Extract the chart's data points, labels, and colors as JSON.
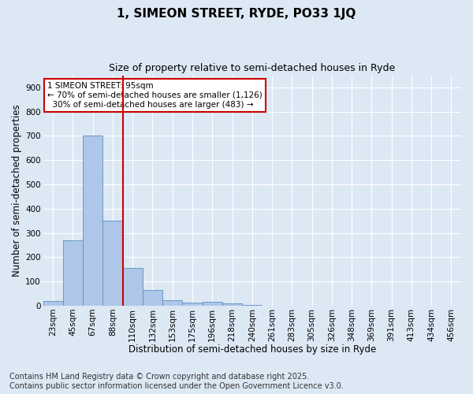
{
  "title": "1, SIMEON STREET, RYDE, PO33 1JQ",
  "subtitle": "Size of property relative to semi-detached houses in Ryde",
  "xlabel": "Distribution of semi-detached houses by size in Ryde",
  "ylabel": "Number of semi-detached properties",
  "bar_values": [
    20,
    270,
    700,
    350,
    155,
    65,
    22,
    12,
    15,
    8,
    2,
    0,
    0,
    0,
    0,
    0,
    0,
    0,
    0,
    0,
    0
  ],
  "categories": [
    "23sqm",
    "45sqm",
    "67sqm",
    "88sqm",
    "110sqm",
    "132sqm",
    "153sqm",
    "175sqm",
    "196sqm",
    "218sqm",
    "240sqm",
    "261sqm",
    "283sqm",
    "305sqm",
    "326sqm",
    "348sqm",
    "369sqm",
    "391sqm",
    "413sqm",
    "434sqm",
    "456sqm"
  ],
  "bar_color": "#aec6e8",
  "bar_edge_color": "#5a8fc2",
  "background_color": "#dde8f5",
  "vline_color": "#cc0000",
  "vline_x_index": 3.5,
  "annotation_text": "1 SIMEON STREET: 95sqm\n← 70% of semi-detached houses are smaller (1,126)\n  30% of semi-detached houses are larger (483) →",
  "annotation_box_color": "#ffffff",
  "annotation_box_edge": "#cc0000",
  "ylim": [
    0,
    950
  ],
  "yticks": [
    0,
    100,
    200,
    300,
    400,
    500,
    600,
    700,
    800,
    900
  ],
  "footer": "Contains HM Land Registry data © Crown copyright and database right 2025.\nContains public sector information licensed under the Open Government Licence v3.0.",
  "footer_fontsize": 7,
  "title_fontsize": 11,
  "subtitle_fontsize": 9,
  "xlabel_fontsize": 8.5,
  "ylabel_fontsize": 8.5,
  "tick_fontsize": 7.5,
  "annotation_fontsize": 7.5
}
